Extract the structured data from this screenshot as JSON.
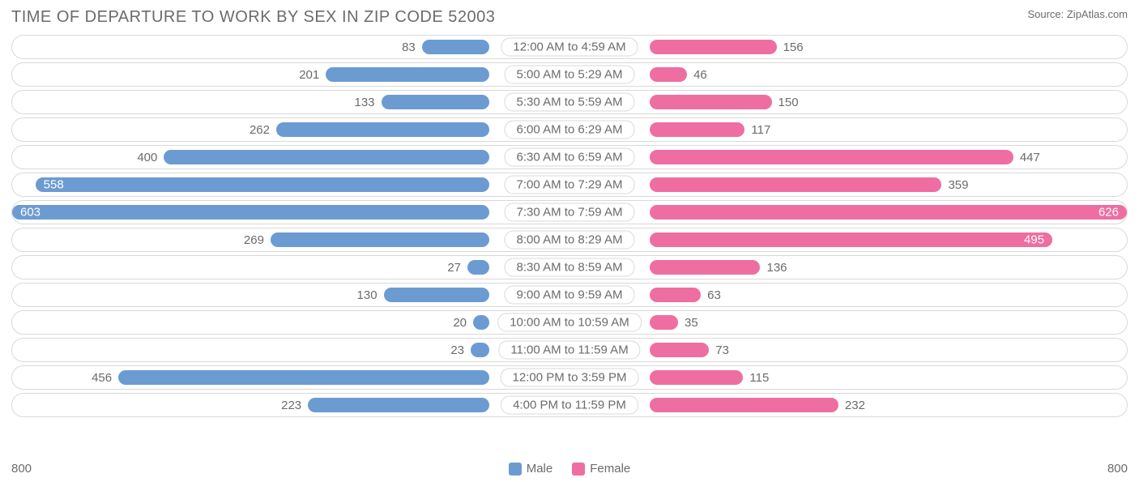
{
  "title": "TIME OF DEPARTURE TO WORK BY SEX IN ZIP CODE 52003",
  "source": "Source: ZipAtlas.com",
  "axis_max": 800,
  "axis_left_label": "800",
  "axis_right_label": "800",
  "legend": {
    "male": "Male",
    "female": "Female"
  },
  "colors": {
    "male": "#6c9bd2",
    "female": "#ee6ea1",
    "track_border": "#d9d9d9",
    "text": "#6b6b6b",
    "background": "#ffffff"
  },
  "inside_label_threshold": 490,
  "label_box_halfwidth_units": 115,
  "rows": [
    {
      "category": "12:00 AM to 4:59 AM",
      "male": 83,
      "female": 156
    },
    {
      "category": "5:00 AM to 5:29 AM",
      "male": 201,
      "female": 46
    },
    {
      "category": "5:30 AM to 5:59 AM",
      "male": 133,
      "female": 150
    },
    {
      "category": "6:00 AM to 6:29 AM",
      "male": 262,
      "female": 117
    },
    {
      "category": "6:30 AM to 6:59 AM",
      "male": 400,
      "female": 447
    },
    {
      "category": "7:00 AM to 7:29 AM",
      "male": 558,
      "female": 359
    },
    {
      "category": "7:30 AM to 7:59 AM",
      "male": 603,
      "female": 626
    },
    {
      "category": "8:00 AM to 8:29 AM",
      "male": 269,
      "female": 495
    },
    {
      "category": "8:30 AM to 8:59 AM",
      "male": 27,
      "female": 136
    },
    {
      "category": "9:00 AM to 9:59 AM",
      "male": 130,
      "female": 63
    },
    {
      "category": "10:00 AM to 10:59 AM",
      "male": 20,
      "female": 35
    },
    {
      "category": "11:00 AM to 11:59 AM",
      "male": 23,
      "female": 73
    },
    {
      "category": "12:00 PM to 3:59 PM",
      "male": 456,
      "female": 115
    },
    {
      "category": "4:00 PM to 11:59 PM",
      "male": 223,
      "female": 232
    }
  ]
}
